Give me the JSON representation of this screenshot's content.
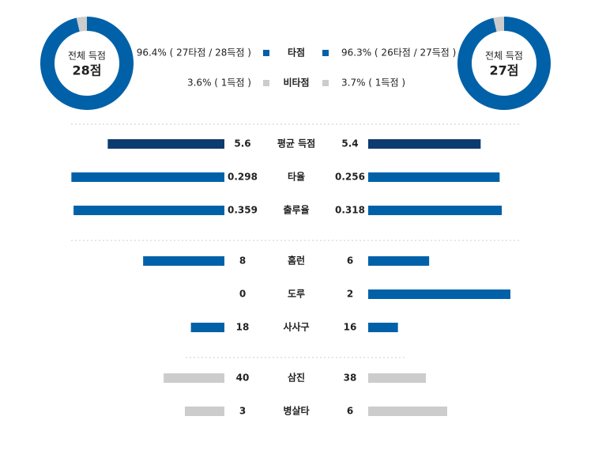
{
  "donuts": [
    {
      "label": "전체 득점",
      "total": "28점",
      "values": [
        96.4,
        3.6
      ]
    },
    {
      "label": "전체 득점",
      "total": "27점",
      "values": [
        96.3,
        3.7
      ]
    }
  ],
  "legend": [
    {
      "name": "타점",
      "color": "#0061a8",
      "left": "96.4% ( 27타점 / 28득점 )",
      "right": "96.3% ( 26타점 / 27득점 )"
    },
    {
      "name": "비타점",
      "color": "#cccccc",
      "left": "3.6% ( 1득점 )",
      "right": "3.7% ( 1득점 )"
    }
  ],
  "stats": [
    [
      {
        "label": "평균 득점",
        "left": 5.6,
        "right": 5.4,
        "color": "#0d3b6e"
      },
      {
        "label": "타율",
        "left": 0.298,
        "right": 0.256,
        "color": "#0061a8"
      },
      {
        "label": "출루율",
        "left": 0.359,
        "right": 0.318,
        "color": "#0061a8"
      }
    ],
    [
      {
        "label": "홈런",
        "left": 8,
        "right": 6,
        "color": "#0061a8"
      },
      {
        "label": "도루",
        "left": 0,
        "right": 2,
        "color": "#0061a8"
      },
      {
        "label": "사사구",
        "left": 18,
        "right": 16,
        "color": "#0061a8"
      }
    ],
    [
      {
        "label": "삼진",
        "left": 40,
        "right": 38,
        "color": "#cccccc"
      },
      {
        "label": "병살타",
        "left": 3,
        "right": 6,
        "color": "#cccccc"
      }
    ]
  ]
}
